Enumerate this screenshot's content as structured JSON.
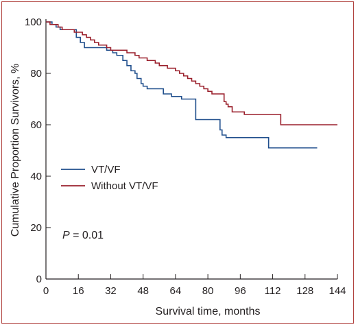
{
  "chart_data": {
    "type": "line",
    "subtype": "kaplan-meier step",
    "title": "",
    "xlabel": "Survival time, months",
    "ylabel": "Cumulative Proportion Survivors, %",
    "xlim": [
      0,
      144
    ],
    "ylim": [
      0,
      100
    ],
    "xticks": [
      "0",
      "16",
      "32",
      "48",
      "64",
      "80",
      "96",
      "112",
      "128",
      "144"
    ],
    "yticks": [
      "0",
      "20",
      "40",
      "60",
      "80",
      "100"
    ],
    "grid": false,
    "legend": "middle-left",
    "annotation": "P = 0.01",
    "annotation_parts": {
      "symbol": "P",
      "rest": " = 0.01"
    },
    "series": [
      {
        "name": "VT/VF",
        "color": "#1f4e8c",
        "x": [
          0,
          3,
          5,
          7,
          15,
          17,
          19,
          28,
          30,
          33,
          35,
          38,
          40,
          42,
          44,
          45,
          47,
          48,
          50,
          58,
          62,
          67,
          74,
          86,
          87,
          89,
          110,
          134
        ],
        "y": [
          100,
          99,
          98,
          97,
          94,
          92,
          90,
          90,
          89,
          88,
          87,
          85,
          83,
          81,
          80,
          78,
          76,
          75,
          74,
          72,
          71,
          70,
          62,
          58,
          56,
          55,
          51,
          51
        ]
      },
      {
        "name": "Without VT/VF",
        "color": "#9a1f2b",
        "x": [
          0,
          2,
          4,
          6,
          8,
          10,
          14,
          18,
          20,
          22,
          24,
          26,
          30,
          32,
          36,
          40,
          44,
          46,
          50,
          54,
          56,
          60,
          64,
          66,
          68,
          70,
          72,
          74,
          76,
          78,
          80,
          82,
          84,
          88,
          89,
          90,
          92,
          98,
          100,
          116,
          144
        ],
        "y": [
          100,
          99,
          99,
          98,
          97,
          97,
          96,
          95,
          94,
          93,
          92,
          91,
          90,
          89,
          89,
          88,
          87,
          86,
          85,
          84,
          83,
          82,
          81,
          80,
          79,
          78,
          77,
          76,
          75,
          74,
          73,
          72,
          72,
          69,
          68,
          67,
          65,
          64,
          64,
          60,
          60
        ]
      }
    ]
  }
}
